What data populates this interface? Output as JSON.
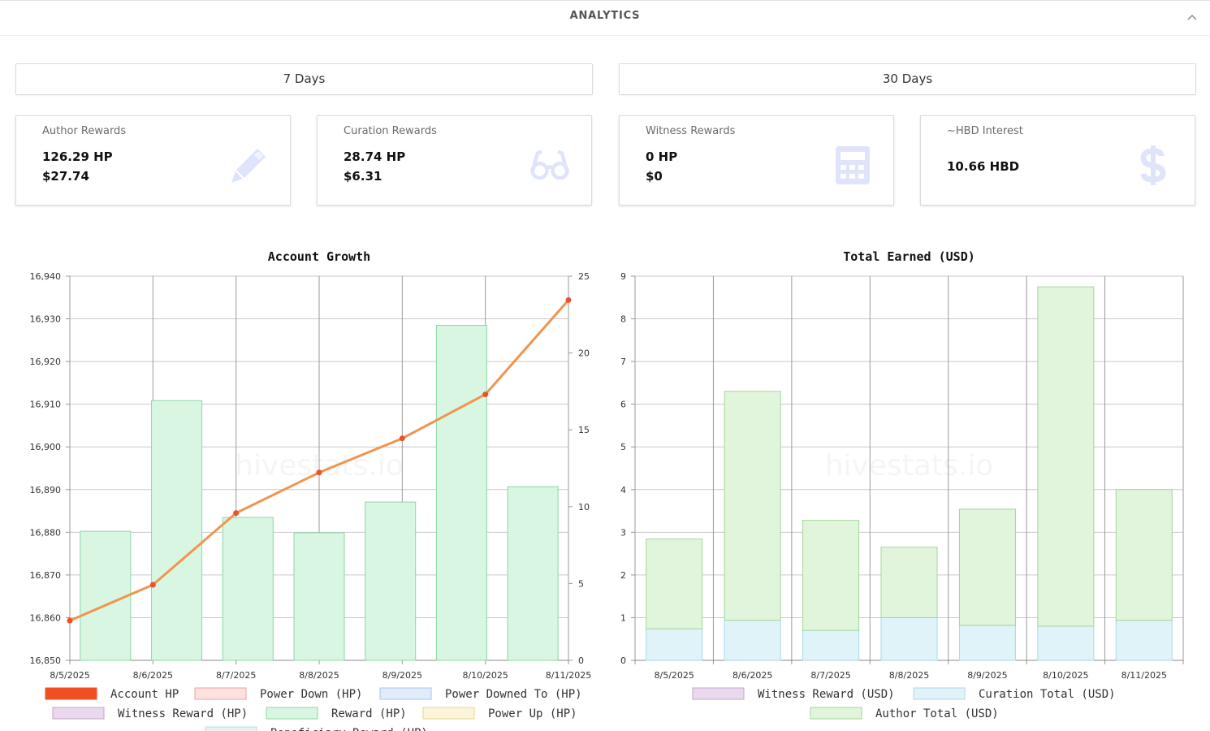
{
  "header": {
    "title": "ANALYTICS",
    "collapse_icon": "chevron-up-icon"
  },
  "periods": {
    "week_label": "7 Days",
    "month_label": "30 Days"
  },
  "cards": [
    {
      "label": "Author Rewards",
      "value1": "126.29 HP",
      "value2": "$27.74",
      "icon": "pencil-icon"
    },
    {
      "label": "Curation Rewards",
      "value1": "28.74 HP",
      "value2": "$6.31",
      "icon": "glasses-icon"
    },
    {
      "label": "Witness Rewards",
      "value1": "0 HP",
      "value2": "$0",
      "icon": "calculator-icon"
    },
    {
      "label": "~HBD Interest",
      "value1": "10.66 HBD",
      "icon": "dollar-icon"
    }
  ],
  "colors": {
    "card_icon": "#dfe4fa",
    "reward_fill": "#d8f6e2",
    "reward_stroke": "#8fd5a6",
    "line": "#f0954f",
    "line_point": "#e8532a",
    "curation_fill": "#dff3f8",
    "curation_stroke": "#a9d9ea",
    "author_fill": "#e1f5dd",
    "author_stroke": "#a3d69a"
  },
  "chart_data": [
    {
      "type": "bar",
      "title": "Account Growth",
      "watermark": "hivestats.io",
      "x": [
        "8/5/2025",
        "8/6/2025",
        "8/7/2025",
        "8/8/2025",
        "8/9/2025",
        "8/10/2025",
        "8/11/2025"
      ],
      "left_axis": {
        "ylim": [
          16850,
          16940
        ],
        "ticks": [
          "16,850",
          "16,860",
          "16,870",
          "16,880",
          "16,890",
          "16,900",
          "16,910",
          "16,920",
          "16,930",
          "16,940"
        ]
      },
      "right_axis": {
        "ylim": [
          0,
          25
        ],
        "ticks": [
          "0",
          "5",
          "10",
          "15",
          "20",
          "25"
        ]
      },
      "series": [
        {
          "name": "Account HP",
          "type": "line",
          "axis": "left",
          "values": [
            16859.3,
            16867.7,
            16884.5,
            16894.0,
            16902.0,
            16912.3,
            16934.4
          ]
        },
        {
          "name": "Reward (HP)",
          "type": "bar",
          "axis": "right",
          "values": [
            8.4,
            16.9,
            9.3,
            8.3,
            10.3,
            21.8,
            11.3
          ]
        }
      ],
      "legend": [
        {
          "name": "Account HP",
          "fill": "#f04e23",
          "stroke": "#f04e23"
        },
        {
          "name": "Power Down (HP)",
          "fill": "#fde0e0",
          "stroke": "#f0a0a0"
        },
        {
          "name": "Power Downed To (HP)",
          "fill": "#e1ecfb",
          "stroke": "#a6c4f0"
        },
        {
          "name": "Witness Reward (HP)",
          "fill": "#ead9ee",
          "stroke": "#c7a3cf"
        },
        {
          "name": "Reward (HP)",
          "fill": "#d8f6e2",
          "stroke": "#8fd5a6"
        },
        {
          "name": "Power Up (HP)",
          "fill": "#fbf4d8",
          "stroke": "#e5d59a"
        },
        {
          "name": "Beneficiary Reward (HP)",
          "fill": "#e3f5f3",
          "stroke": "#b3e0da"
        }
      ]
    },
    {
      "type": "bar",
      "stacked": true,
      "title": "Total Earned (USD)",
      "watermark": "hivestats.io",
      "categories": [
        "8/5/2025",
        "8/6/2025",
        "8/7/2025",
        "8/8/2025",
        "8/9/2025",
        "8/10/2025",
        "8/11/2025"
      ],
      "ylim": [
        0,
        9
      ],
      "ticks": [
        "0",
        "1",
        "2",
        "3",
        "4",
        "5",
        "6",
        "7",
        "8",
        "9"
      ],
      "series": [
        {
          "name": "Witness Reward (USD)",
          "values": [
            0,
            0,
            0,
            0,
            0,
            0,
            0
          ]
        },
        {
          "name": "Curation Total (USD)",
          "values": [
            0.74,
            0.94,
            0.7,
            1.0,
            0.82,
            0.8,
            0.94
          ]
        },
        {
          "name": "Author Total (USD)",
          "values": [
            2.1,
            5.36,
            2.58,
            1.65,
            2.72,
            7.95,
            3.06
          ]
        }
      ],
      "legend": [
        {
          "name": "Witness Reward (USD)",
          "fill": "#ead9ee",
          "stroke": "#c7a3cf"
        },
        {
          "name": "Curation Total (USD)",
          "fill": "#dff3f8",
          "stroke": "#a9d9ea"
        },
        {
          "name": "Author Total (USD)",
          "fill": "#e1f5dd",
          "stroke": "#a3d69a"
        }
      ]
    }
  ]
}
